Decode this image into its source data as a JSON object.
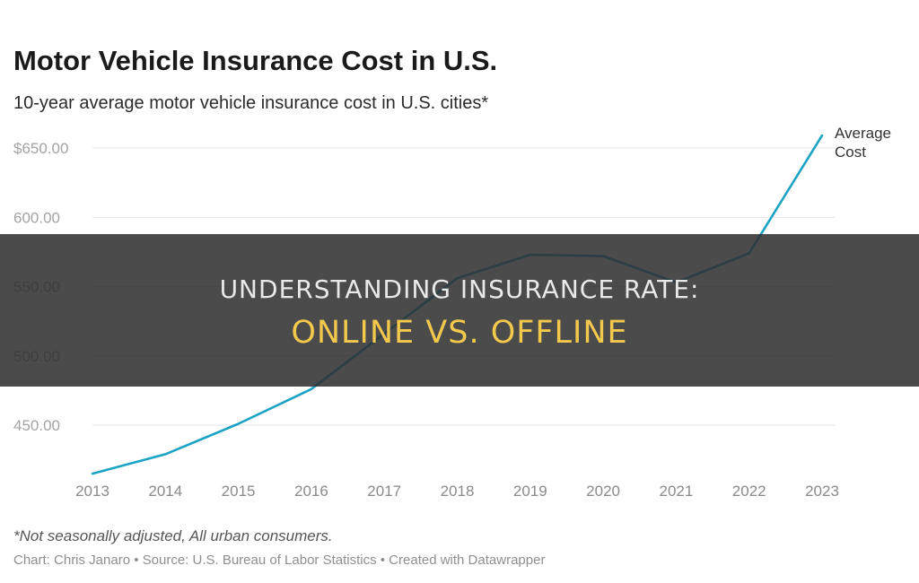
{
  "chart_data": {
    "type": "line",
    "title": "Motor Vehicle Insurance Cost in U.S.",
    "subtitle": "10-year average motor vehicle insurance cost in U.S. cities*",
    "x": [
      "2013",
      "2014",
      "2015",
      "2016",
      "2017",
      "2018",
      "2019",
      "2020",
      "2021",
      "2022",
      "2023"
    ],
    "series": [
      {
        "name": "Average Cost",
        "values": [
          415,
          429,
          451,
          476,
          516,
          556,
          573,
          572,
          553,
          574,
          659
        ]
      }
    ],
    "y_ticks": [
      "$650.00",
      "600.00",
      "550.00",
      "500.00",
      "450.00"
    ],
    "ylim": [
      410,
      660
    ],
    "grid": true,
    "legend": "inline-end-label",
    "line_color": "#1ba3c6"
  },
  "footnote": "*Not seasonally adjusted, All urban consumers.",
  "credits": "Chart: Chris Janaro • Source: U.S. Bureau of Labor Statistics • Created with Datawrapper",
  "banner": {
    "line1": "UNDERSTANDING INSURANCE RATE:",
    "line2": "ONLINE VS. OFFLINE"
  }
}
